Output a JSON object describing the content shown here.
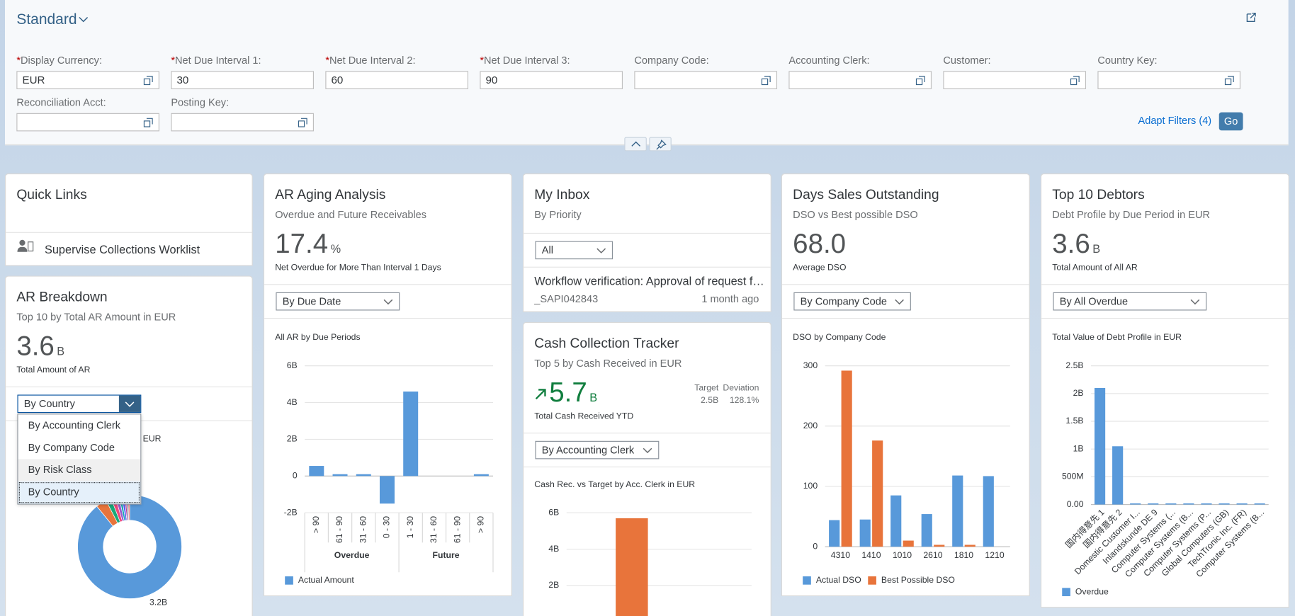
{
  "filter_bar": {
    "variant": "Standard",
    "required_mark": "*",
    "fields": [
      {
        "label": "Display Currency:",
        "required": true,
        "value": "EUR",
        "value_help": true
      },
      {
        "label": "Net Due Interval 1:",
        "required": true,
        "value": "30",
        "value_help": false
      },
      {
        "label": "Net Due Interval 2:",
        "required": true,
        "value": "60",
        "value_help": false
      },
      {
        "label": "Net Due Interval 3:",
        "required": true,
        "value": "90",
        "value_help": false
      },
      {
        "label": "Company Code:",
        "required": false,
        "value_help": true
      },
      {
        "label": "Accounting Clerk:",
        "required": false,
        "value_help": true
      },
      {
        "label": "Customer:",
        "required": false,
        "value_help": true
      },
      {
        "label": "Country Key:",
        "required": false,
        "value_help": true
      },
      {
        "label": "Reconciliation Acct:",
        "required": false,
        "value_help": true
      },
      {
        "label": "Posting Key:",
        "required": false,
        "value_help": true
      }
    ],
    "adapt_filters": "Adapt Filters (4)",
    "go": "Go"
  },
  "cards": [
    {
      "title": "Quick Links",
      "links": [
        "Supervise Collections Worklist"
      ]
    },
    {
      "title": "AR Breakdown",
      "subtitle": "Top 10 by Total AR Amount in EUR",
      "kpi": {
        "value": "3.6",
        "unit": "B",
        "label": "Total Amount of AR"
      },
      "dropdown": {
        "selected": "By Country",
        "open": true,
        "highlighted": 2,
        "options": [
          "By Accounting Clerk",
          "By Company Code",
          "By Risk Class",
          "By Country"
        ]
      },
      "chart": {
        "type": "pie",
        "donut": true,
        "title": "EUR",
        "values": [
          3.2,
          0.12,
          0.06,
          0.05,
          0.04,
          0.03,
          0.03,
          0.02,
          0.02,
          0.02
        ],
        "value_labels": [
          "3.2B",
          null,
          null,
          null,
          null,
          null,
          null,
          null,
          null,
          null
        ],
        "colors": [
          "#5899da",
          "#e8743b",
          "#19a979",
          "#ed4a7b",
          "#945ecf",
          "#13a4b4",
          "#525df4",
          "#bf399e",
          "#6c8893",
          "#ee6868"
        ]
      }
    },
    {
      "title": "AR Aging Analysis",
      "subtitle": "Overdue and Future Receivables",
      "kpi": {
        "value": "17.4",
        "unit": "%",
        "label": "Net Overdue for More Than Interval 1 Days"
      },
      "dropdown": {
        "selected": "By Due Date"
      },
      "chart": {
        "type": "bar",
        "title": "All AR by Due Periods",
        "groups": [
          {
            "name": "Overdue",
            "categories": [
              "> 90",
              "61 - 90",
              "31 - 60",
              "0 - 30"
            ]
          },
          {
            "name": "Future",
            "categories": [
              "1 - 30",
              "31 - 60",
              "61 - 90",
              "> 90"
            ]
          }
        ],
        "series": [
          {
            "name": "Actual Amount",
            "color": "#5899da",
            "values": [
              0.55,
              0.1,
              0.1,
              -1.5,
              4.6,
              0,
              0,
              0.1
            ]
          }
        ],
        "ylim": [
          -2,
          6
        ],
        "yticks": [
          {
            "value": -2,
            "label": "-2B"
          },
          0,
          {
            "value": 2,
            "label": "2B"
          },
          {
            "value": 4,
            "label": "4B"
          },
          {
            "value": 6,
            "label": "6B"
          }
        ],
        "grid": true
      }
    },
    {
      "title": "My Inbox",
      "subtitle": "By Priority",
      "dropdown": {
        "selected": "All"
      },
      "inbox_items": [
        {
          "title": "Workflow verification: Approval of request f…",
          "id": "_SAPI042843",
          "time": "1 month ago"
        }
      ]
    },
    {
      "title": "Cash Collection Tracker",
      "subtitle": "Top 5 by Cash Received in EUR",
      "kpi": {
        "value": "5.7",
        "unit": "B",
        "label": "Total Cash Received YTD",
        "trend": "up",
        "color": "#107e3e"
      },
      "target": {
        "label": "Target",
        "value": "2.5B"
      },
      "deviation": {
        "label": "Deviation",
        "value": "128.1%"
      },
      "dropdown": {
        "selected": "By Accounting Clerk"
      },
      "chart": {
        "type": "bar",
        "title": "Cash Rec. vs Target by Acc. Clerk in EUR",
        "series": [
          {
            "color": "#e8743b",
            "values": [
              5.7
            ]
          }
        ],
        "ylim": [
          0,
          6
        ],
        "yticks": [
          {
            "value": 2,
            "label": "2B"
          },
          {
            "value": 4,
            "label": "4B"
          },
          {
            "value": 6,
            "label": "6B"
          }
        ],
        "grid": true
      }
    },
    {
      "title": "Days Sales Outstanding",
      "subtitle": "DSO vs Best possible DSO",
      "kpi": {
        "value": "68.0",
        "label": "Average DSO"
      },
      "dropdown": {
        "selected": "By Company Code"
      },
      "chart": {
        "type": "bar",
        "title": "DSO by Company Code",
        "categories": [
          "4310",
          "1410",
          "1010",
          "2610",
          "1810",
          "1210"
        ],
        "series": [
          {
            "name": "Actual DSO",
            "color": "#5899da",
            "values": [
              44,
              45,
              85,
              54,
              118,
              117
            ]
          },
          {
            "name": "Best Possible DSO",
            "color": "#e8743b",
            "values": [
              292,
              176,
              10,
              3,
              3,
              0
            ]
          }
        ],
        "ylim": [
          0,
          300
        ],
        "yticks": [
          0,
          100,
          200,
          300
        ],
        "grid": true
      }
    },
    {
      "title": "Top 10 Debtors",
      "subtitle": "Debt Profile by Due Period in EUR",
      "kpi": {
        "value": "3.6",
        "unit": "B",
        "label": "Total Amount of All AR"
      },
      "dropdown": {
        "selected": "By All Overdue"
      },
      "chart": {
        "type": "bar",
        "title": "Total Value of Debt Profile in EUR",
        "categories": [
          "国内得意先 1",
          "国内得意先 2",
          "Domestic Customer I...",
          "Inlandskunde DE 9",
          "Computer Systems (...",
          "Computer Systems (B...",
          "Computer Systems (P...",
          "Global Computers (GB)",
          "TechTronic Inc. (FR)",
          "Computer Systems (B..."
        ],
        "series": [
          {
            "name": "Overdue",
            "color": "#5899da",
            "values": [
              2.1,
              1.05,
              0.02,
              0.02,
              0.02,
              0.02,
              0.02,
              0.02,
              0.02,
              0.02
            ]
          }
        ],
        "ylim": [
          0,
          2.5
        ],
        "yticks": [
          {
            "value": 0,
            "label": "0.00"
          },
          {
            "value": 0.5,
            "label": "500M"
          },
          {
            "value": 1,
            "label": "1B"
          },
          {
            "value": 1.5,
            "label": "1.5B"
          },
          {
            "value": 2,
            "label": "2B"
          },
          {
            "value": 2.5,
            "label": "2.5B"
          }
        ],
        "grid": true
      }
    }
  ]
}
